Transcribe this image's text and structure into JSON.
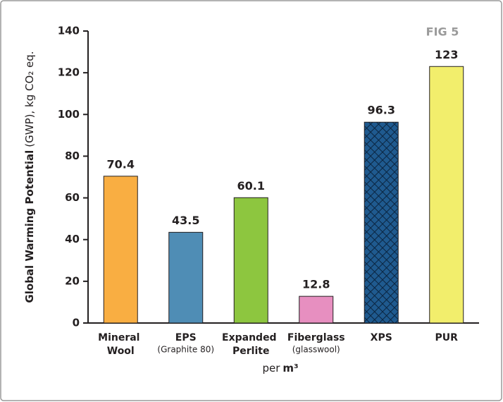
{
  "chart_data": {
    "type": "bar",
    "annotation": "FIG 5",
    "y_label": "Global Warming Potential",
    "y_label_suffix": "(GWP), kg CO₂ eq.",
    "x_label": "per",
    "x_label_unit": "m³",
    "categories": [
      "Mineral Wool",
      "EPS",
      "Expanded Perlite",
      "Fiberglass",
      "XPS",
      "PUR"
    ],
    "sublabels": [
      null,
      "(Graphite 80)",
      null,
      "(glasswool)",
      null,
      null
    ],
    "values": [
      70.4,
      43.5,
      60.1,
      12.8,
      96.3,
      123
    ],
    "colors": [
      "#f9ae42",
      "#4f8db5",
      "#8dc63f",
      "#e78fc0",
      "#1f5a8f",
      "#f2ee6c"
    ],
    "hatch": [
      false,
      false,
      false,
      false,
      true,
      false
    ],
    "ylim": [
      0,
      140
    ],
    "yticks": [
      0,
      20,
      40,
      60,
      80,
      100,
      120,
      140
    ],
    "grid": false
  }
}
